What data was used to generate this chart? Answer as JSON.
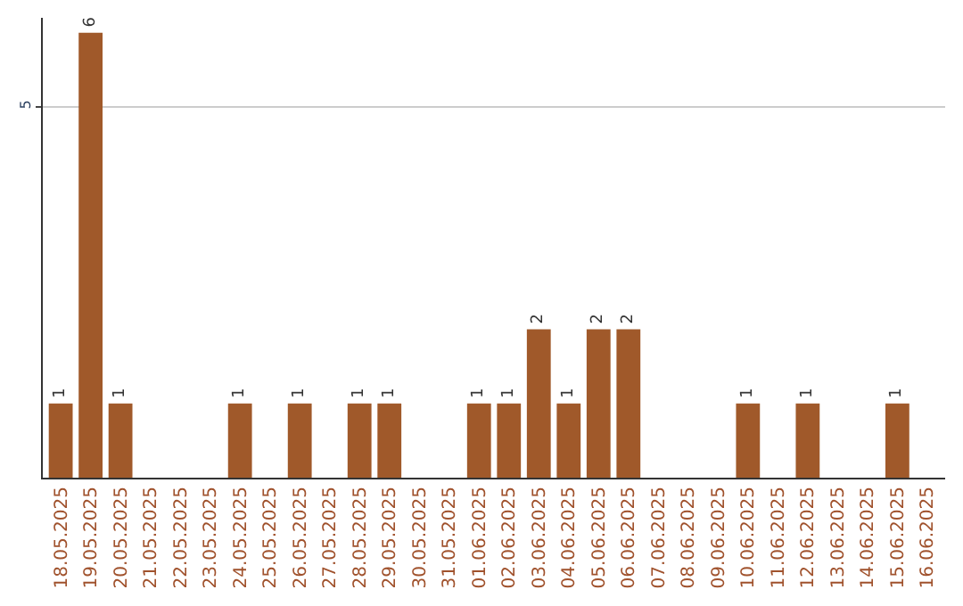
{
  "chart_data": {
    "type": "bar",
    "categories": [
      "18.05.2025",
      "19.05.2025",
      "20.05.2025",
      "21.05.2025",
      "22.05.2025",
      "23.05.2025",
      "24.05.2025",
      "25.05.2025",
      "26.05.2025",
      "27.05.2025",
      "28.05.2025",
      "29.05.2025",
      "30.05.2025",
      "31.05.2025",
      "01.06.2025",
      "02.06.2025",
      "03.06.2025",
      "04.06.2025",
      "05.06.2025",
      "06.06.2025",
      "07.06.2025",
      "08.06.2025",
      "09.06.2025",
      "10.06.2025",
      "11.06.2025",
      "12.06.2025",
      "13.06.2025",
      "14.06.2025",
      "15.06.2025",
      "16.06.2025"
    ],
    "values": [
      1,
      6,
      1,
      0,
      0,
      0,
      1,
      0,
      1,
      0,
      1,
      1,
      0,
      0,
      1,
      1,
      2,
      1,
      2,
      2,
      0,
      0,
      0,
      1,
      0,
      1,
      0,
      0,
      1,
      0
    ],
    "value_labels": [
      "1",
      "6",
      "1",
      null,
      null,
      null,
      "1",
      null,
      "1",
      null,
      "1",
      "1",
      null,
      null,
      "1",
      "1",
      "2",
      "1",
      "2",
      "2",
      null,
      null,
      null,
      "1",
      null,
      "1",
      null,
      null,
      "1",
      null
    ],
    "color": "#a0592a",
    "ylim": [
      0,
      6.2
    ],
    "yticks": [
      5
    ],
    "grid": "y",
    "legend": false
  }
}
